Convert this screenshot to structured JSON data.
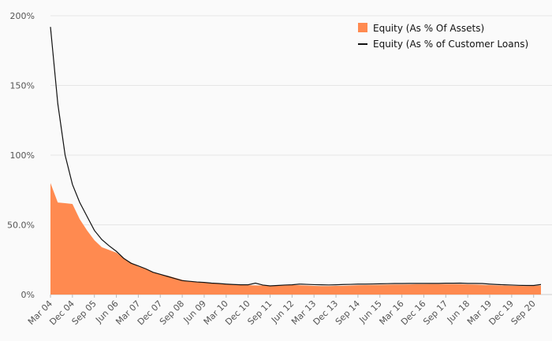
{
  "chart_data": {
    "type": "area",
    "title": "",
    "xlabel": "",
    "ylabel": "",
    "ylim": [
      0,
      200
    ],
    "grid": true,
    "legend_position": "top-right",
    "y_ticks": [
      {
        "value": 0,
        "label": "0%"
      },
      {
        "value": 50,
        "label": "50.0%"
      },
      {
        "value": 100,
        "label": "100%"
      },
      {
        "value": 150,
        "label": "150%"
      },
      {
        "value": 200,
        "label": "200%"
      }
    ],
    "x_tick_labels": [
      "Mar 04",
      "Dec 04",
      "Sep 05",
      "Jun 06",
      "Mar 07",
      "Dec 07",
      "Sep 08",
      "Jun 09",
      "Mar 10",
      "Dec 10",
      "Sep 11",
      "Jun 12",
      "Mar 13",
      "Dec 13",
      "Sep 14",
      "Jun 15",
      "Mar 16",
      "Dec 16",
      "Sep 17",
      "Jun 18",
      "Mar 19",
      "Dec 19",
      "Sep 20"
    ],
    "x": [
      "Mar 04",
      "Jun 04",
      "Sep 04",
      "Dec 04",
      "Mar 05",
      "Jun 05",
      "Sep 05",
      "Dec 05",
      "Mar 06",
      "Jun 06",
      "Sep 06",
      "Dec 06",
      "Mar 07",
      "Jun 07",
      "Sep 07",
      "Dec 07",
      "Mar 08",
      "Jun 08",
      "Sep 08",
      "Dec 08",
      "Mar 09",
      "Jun 09",
      "Sep 09",
      "Dec 09",
      "Mar 10",
      "Jun 10",
      "Sep 10",
      "Dec 10",
      "Mar 11",
      "Jun 11",
      "Sep 11",
      "Dec 11",
      "Mar 12",
      "Jun 12",
      "Sep 12",
      "Dec 12",
      "Mar 13",
      "Jun 13",
      "Sep 13",
      "Dec 13",
      "Mar 14",
      "Jun 14",
      "Sep 14",
      "Dec 14",
      "Mar 15",
      "Jun 15",
      "Sep 15",
      "Dec 15",
      "Mar 16",
      "Jun 16",
      "Sep 16",
      "Dec 16",
      "Mar 17",
      "Jun 17",
      "Sep 17",
      "Dec 17",
      "Mar 18",
      "Jun 18",
      "Sep 18",
      "Dec 18",
      "Mar 19",
      "Jun 19",
      "Sep 19",
      "Dec 19",
      "Mar 20",
      "Jun 20",
      "Sep 20",
      "Dec 20"
    ],
    "series": [
      {
        "name": "Equity (As % Of Assets)",
        "kind": "area",
        "color": "#ff8a50",
        "values": [
          80,
          66,
          65.5,
          65,
          54,
          46,
          39,
          34,
          32,
          30,
          26,
          23,
          20,
          18.5,
          16,
          14.5,
          13.5,
          12,
          10.5,
          9.5,
          9,
          8.5,
          8,
          7.7,
          7.2,
          7,
          6.8,
          6.7,
          6.6,
          6.5,
          6.4,
          6.5,
          6.6,
          6.8,
          6.7,
          6.5,
          6.2,
          6.1,
          6.1,
          6.2,
          6.3,
          6.5,
          6.7,
          6.8,
          6.9,
          7,
          7.1,
          7.2,
          7.2,
          7.3,
          7.4,
          7.4,
          7.5,
          7.5,
          7.5,
          7.5,
          7.4,
          7.3,
          7.2,
          7,
          6.8,
          6.6,
          6.4,
          6.3,
          6.2,
          6.1,
          6.2,
          6.5
        ]
      },
      {
        "name": "Equity (As % of Customer Loans)",
        "kind": "line",
        "color": "#111111",
        "values": [
          192,
          137,
          100,
          79,
          66,
          56,
          46,
          39.5,
          35,
          31,
          26,
          22.5,
          20.5,
          18.5,
          16,
          14.5,
          13,
          11.5,
          10,
          9.5,
          9,
          8.7,
          8.2,
          7.9,
          7.5,
          7.2,
          7,
          7,
          8.2,
          6.8,
          6.2,
          6.5,
          6.8,
          7,
          7.5,
          7.3,
          7.1,
          7,
          6.9,
          7,
          7.2,
          7.3,
          7.5,
          7.5,
          7.6,
          7.7,
          7.8,
          7.9,
          7.9,
          8,
          8,
          8,
          8,
          8,
          8.1,
          8.1,
          8.2,
          8,
          8,
          7.9,
          7.5,
          7.2,
          7,
          6.8,
          6.6,
          6.5,
          6.5,
          7.2
        ]
      }
    ]
  }
}
